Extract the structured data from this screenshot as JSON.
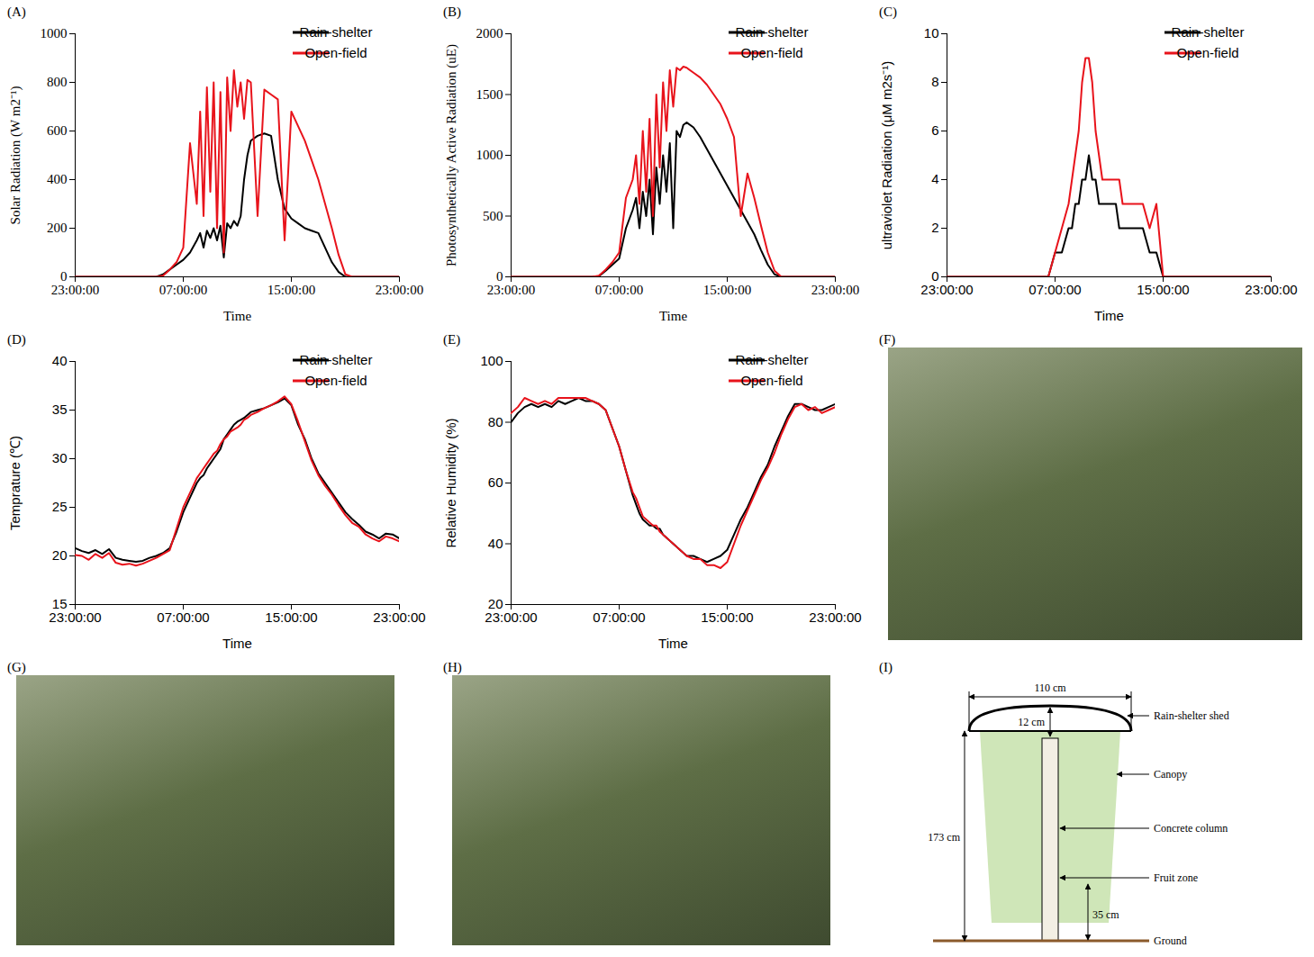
{
  "chart_data": [
    {
      "type": "line",
      "title": "(A)",
      "x_label": "Time",
      "y_label": "Solar Radiation (W m2⁻¹)",
      "x": [
        0,
        0.5,
        1,
        1.5,
        2,
        2.5,
        3,
        3.5,
        4,
        4.5,
        5,
        5.5,
        6,
        6.5,
        7,
        7.5,
        8,
        8.5,
        9,
        9.25,
        9.5,
        9.75,
        10,
        10.25,
        10.5,
        10.75,
        11,
        11.25,
        11.5,
        11.75,
        12,
        12.25,
        12.5,
        12.75,
        13,
        13.5,
        14,
        14.5,
        15,
        15.5,
        16,
        16.5,
        17,
        17.5,
        18,
        18.5,
        19,
        19.5,
        20,
        20.5,
        21,
        21.5,
        22,
        22.5,
        23,
        23.5,
        24
      ],
      "xlim": [
        0,
        24
      ],
      "xticks": [
        {
          "value": 0,
          "label": "23:00:00"
        },
        {
          "value": 8,
          "label": "07:00:00"
        },
        {
          "value": 16,
          "label": "15:00:00"
        },
        {
          "value": 24,
          "label": "23:00:00"
        }
      ],
      "ylim": [
        0,
        1000
      ],
      "yticks": [
        0,
        200,
        400,
        600,
        800,
        1000
      ],
      "grid": false,
      "legend": "top-right",
      "series": [
        {
          "name": "Rain-shelter",
          "color": "#000000",
          "values": [
            0,
            0,
            0,
            0,
            0,
            0,
            0,
            0,
            0,
            0,
            0,
            0,
            0,
            10,
            30,
            50,
            70,
            100,
            150,
            180,
            120,
            190,
            160,
            200,
            150,
            210,
            80,
            220,
            200,
            230,
            210,
            250,
            400,
            500,
            560,
            580,
            590,
            580,
            400,
            280,
            240,
            220,
            200,
            190,
            180,
            120,
            60,
            20,
            0,
            0,
            0,
            0,
            0,
            0,
            0,
            0,
            0
          ]
        },
        {
          "name": "Open-field",
          "color": "#e8131b",
          "values": [
            0,
            0,
            0,
            0,
            0,
            0,
            0,
            0,
            0,
            0,
            0,
            0,
            0,
            5,
            30,
            60,
            120,
            550,
            300,
            680,
            250,
            780,
            350,
            800,
            200,
            760,
            100,
            820,
            600,
            850,
            700,
            800,
            650,
            810,
            800,
            250,
            770,
            750,
            730,
            150,
            680,
            620,
            560,
            480,
            400,
            300,
            200,
            90,
            10,
            0,
            0,
            0,
            0,
            0,
            0,
            0,
            0
          ]
        }
      ]
    },
    {
      "type": "line",
      "title": "(B)",
      "x_label": "Time",
      "y_label": "Photosynthetically Active Radiation (uE)",
      "x": [
        0,
        0.5,
        1,
        1.5,
        2,
        2.5,
        3,
        3.5,
        4,
        4.5,
        5,
        5.5,
        6,
        6.5,
        7,
        7.5,
        8,
        8.5,
        9,
        9.25,
        9.5,
        9.75,
        10,
        10.25,
        10.5,
        10.75,
        11,
        11.25,
        11.5,
        11.75,
        12,
        12.25,
        12.5,
        12.75,
        13,
        13.5,
        14,
        14.5,
        15,
        15.5,
        16,
        16.5,
        17,
        17.5,
        18,
        18.5,
        19,
        19.5,
        20,
        20.5,
        21,
        21.5,
        22,
        22.5,
        23,
        23.5,
        24
      ],
      "xlim": [
        0,
        24
      ],
      "xticks": [
        {
          "value": 0,
          "label": "23:00:00"
        },
        {
          "value": 8,
          "label": "07:00:00"
        },
        {
          "value": 16,
          "label": "15:00:00"
        },
        {
          "value": 24,
          "label": "23:00:00"
        }
      ],
      "ylim": [
        0,
        2000
      ],
      "yticks": [
        0,
        500,
        1000,
        1500,
        2000
      ],
      "grid": false,
      "legend": "top-right",
      "series": [
        {
          "name": "Rain-shelter",
          "color": "#000000",
          "values": [
            0,
            0,
            0,
            0,
            0,
            0,
            0,
            0,
            0,
            0,
            0,
            0,
            0,
            5,
            50,
            100,
            150,
            400,
            550,
            650,
            400,
            700,
            500,
            800,
            350,
            900,
            600,
            1000,
            700,
            1100,
            400,
            1200,
            1150,
            1250,
            1270,
            1230,
            1150,
            1050,
            950,
            850,
            750,
            650,
            550,
            450,
            350,
            220,
            100,
            20,
            0,
            0,
            0,
            0,
            0,
            0,
            0,
            0,
            0
          ]
        },
        {
          "name": "Open-field",
          "color": "#e8131b",
          "values": [
            0,
            0,
            0,
            0,
            0,
            0,
            0,
            0,
            0,
            0,
            0,
            0,
            0,
            10,
            60,
            120,
            200,
            650,
            800,
            1000,
            600,
            1200,
            700,
            1300,
            500,
            1500,
            900,
            1600,
            1200,
            1700,
            1400,
            1720,
            1700,
            1730,
            1720,
            1680,
            1640,
            1580,
            1500,
            1420,
            1300,
            1150,
            500,
            850,
            650,
            420,
            200,
            50,
            0,
            0,
            0,
            0,
            0,
            0,
            0,
            0,
            0
          ]
        }
      ]
    },
    {
      "type": "line",
      "title": "(C)",
      "x_label": "Time",
      "y_label": "ultraviolet Radiation (μM m2s⁻¹)",
      "x": [
        0,
        0.5,
        1,
        1.5,
        2,
        2.5,
        3,
        3.5,
        4,
        4.5,
        5,
        5.5,
        6,
        6.5,
        7,
        7.5,
        8,
        8.5,
        9,
        9.25,
        9.5,
        9.75,
        10,
        10.25,
        10.5,
        10.75,
        11,
        11.25,
        11.5,
        11.75,
        12,
        12.25,
        12.5,
        12.75,
        13,
        13.5,
        14,
        14.5,
        15,
        15.5,
        16,
        16.5,
        17,
        17.5,
        18,
        18.5,
        19,
        19.5,
        20,
        20.5,
        21,
        21.5,
        22,
        22.5,
        23,
        23.5,
        24
      ],
      "xlim": [
        0,
        24
      ],
      "xticks": [
        {
          "value": 0,
          "label": "23:00:00"
        },
        {
          "value": 8,
          "label": "07:00:00"
        },
        {
          "value": 16,
          "label": "15:00:00"
        },
        {
          "value": 24,
          "label": "23:00:00"
        }
      ],
      "ylim": [
        0,
        10
      ],
      "yticks": [
        0,
        2,
        4,
        6,
        8,
        10
      ],
      "grid": false,
      "legend": "top-right",
      "series": [
        {
          "name": "Rain-shelter",
          "color": "#000000",
          "values": [
            0,
            0,
            0,
            0,
            0,
            0,
            0,
            0,
            0,
            0,
            0,
            0,
            0,
            0,
            0,
            0,
            1,
            1,
            2,
            2,
            3,
            3,
            4,
            4,
            5,
            4,
            4,
            3,
            3,
            3,
            3,
            3,
            3,
            2,
            2,
            2,
            2,
            2,
            1,
            1,
            0,
            0,
            0,
            0,
            0,
            0,
            0,
            0,
            0,
            0,
            0,
            0,
            0,
            0,
            0,
            0,
            0
          ]
        },
        {
          "name": "Open-field",
          "color": "#e8131b",
          "values": [
            0,
            0,
            0,
            0,
            0,
            0,
            0,
            0,
            0,
            0,
            0,
            0,
            0,
            0,
            0,
            0,
            1,
            2,
            3,
            4,
            5,
            6,
            8,
            9,
            9,
            8,
            6,
            5,
            4,
            4,
            4,
            4,
            4,
            4,
            3,
            3,
            3,
            3,
            2,
            3,
            0,
            0,
            0,
            0,
            0,
            0,
            0,
            0,
            0,
            0,
            0,
            0,
            0,
            0,
            0,
            0,
            0
          ]
        }
      ]
    },
    {
      "type": "line",
      "title": "(D)",
      "x_label": "Time",
      "y_label": "Temprature (℃)",
      "x": [
        0,
        0.5,
        1,
        1.5,
        2,
        2.5,
        3,
        3.5,
        4,
        4.5,
        5,
        5.5,
        6,
        6.5,
        7,
        7.5,
        8,
        8.5,
        9,
        9.25,
        9.5,
        9.75,
        10,
        10.25,
        10.5,
        10.75,
        11,
        11.25,
        11.5,
        11.75,
        12,
        12.25,
        12.5,
        12.75,
        13,
        13.5,
        14,
        14.5,
        15,
        15.5,
        16,
        16.5,
        17,
        17.5,
        18,
        18.5,
        19,
        19.5,
        20,
        20.5,
        21,
        21.5,
        22,
        22.5,
        23,
        23.5,
        24
      ],
      "xlim": [
        0,
        24
      ],
      "xticks": [
        {
          "value": 0,
          "label": "23:00:00"
        },
        {
          "value": 8,
          "label": "07:00:00"
        },
        {
          "value": 16,
          "label": "15:00:00"
        },
        {
          "value": 24,
          "label": "23:00:00"
        }
      ],
      "ylim": [
        15,
        40
      ],
      "yticks": [
        15,
        20,
        25,
        30,
        35,
        40
      ],
      "grid": false,
      "legend": "top-right",
      "series": [
        {
          "name": "Rain-shelter",
          "color": "#000000",
          "values": [
            20.8,
            20.5,
            20.3,
            20.6,
            20.2,
            20.7,
            19.8,
            19.6,
            19.5,
            19.4,
            19.5,
            19.8,
            20,
            20.3,
            20.8,
            22.5,
            24.5,
            26,
            27.5,
            28,
            28.3,
            29,
            29.5,
            30,
            30.5,
            31,
            32,
            32.5,
            33,
            33.5,
            33.8,
            34,
            34.2,
            34.5,
            34.8,
            35,
            35.2,
            35.5,
            35.8,
            36.2,
            35.5,
            33.5,
            32,
            30,
            28.5,
            27.5,
            26.5,
            25.5,
            24.5,
            23.8,
            23.2,
            22.5,
            22.2,
            21.8,
            22.3,
            22.2,
            21.8
          ]
        },
        {
          "name": "Open-field",
          "color": "#e8131b",
          "values": [
            20.1,
            20,
            19.6,
            20.2,
            19.8,
            20.3,
            19.3,
            19.1,
            19.2,
            19,
            19.2,
            19.5,
            19.8,
            20.2,
            20.6,
            22.8,
            25,
            26.5,
            28,
            28.5,
            29,
            29.5,
            30,
            30.5,
            30.8,
            31.5,
            32,
            32.3,
            32.8,
            33,
            33.2,
            33.5,
            34,
            34.2,
            34.5,
            34.8,
            35.2,
            35.5,
            35.9,
            36.4,
            35.6,
            33.8,
            31.8,
            29.8,
            28.3,
            27.2,
            26.3,
            25.2,
            24.2,
            23.4,
            23,
            22.2,
            21.8,
            21.5,
            22,
            21.8,
            21.5
          ]
        }
      ]
    },
    {
      "type": "line",
      "title": "(E)",
      "x_label": "Time",
      "y_label": "Relative Humidity (%)",
      "x": [
        0,
        0.5,
        1,
        1.5,
        2,
        2.5,
        3,
        3.5,
        4,
        4.5,
        5,
        5.5,
        6,
        6.5,
        7,
        7.5,
        8,
        8.5,
        9,
        9.25,
        9.5,
        9.75,
        10,
        10.25,
        10.5,
        10.75,
        11,
        11.25,
        11.5,
        11.75,
        12,
        12.25,
        12.5,
        12.75,
        13,
        13.5,
        14,
        14.5,
        15,
        15.5,
        16,
        16.5,
        17,
        17.5,
        18,
        18.5,
        19,
        19.5,
        20,
        20.5,
        21,
        21.5,
        22,
        22.5,
        23,
        23.5,
        24
      ],
      "xlim": [
        0,
        24
      ],
      "xticks": [
        {
          "value": 0,
          "label": "23:00:00"
        },
        {
          "value": 8,
          "label": "07:00:00"
        },
        {
          "value": 16,
          "label": "15:00:00"
        },
        {
          "value": 24,
          "label": "23:00:00"
        }
      ],
      "ylim": [
        20,
        100
      ],
      "yticks": [
        20,
        40,
        60,
        80,
        100
      ],
      "grid": false,
      "legend": "top-right",
      "series": [
        {
          "name": "Rain-shelter",
          "color": "#000000",
          "values": [
            80,
            83,
            85,
            86,
            85,
            86,
            85,
            87,
            86,
            87,
            88,
            87,
            87,
            86,
            84,
            78,
            72,
            64,
            56,
            53,
            50,
            48,
            47,
            46,
            46,
            45,
            45,
            43,
            42,
            41,
            40,
            39,
            38,
            37,
            36,
            36,
            35,
            34,
            35,
            36,
            38,
            43,
            48,
            52,
            57,
            62,
            66,
            72,
            77,
            82,
            86,
            86,
            85,
            84,
            84,
            85,
            86
          ]
        },
        {
          "name": "Open-field",
          "color": "#e8131b",
          "values": [
            83,
            85,
            88,
            87,
            86,
            87,
            86,
            88,
            88,
            88,
            88,
            88,
            87,
            86,
            84,
            78,
            72,
            64,
            57,
            55,
            52,
            49,
            48,
            47,
            46,
            46,
            44,
            43,
            42,
            41,
            40,
            39,
            38,
            37,
            36,
            35,
            35,
            33,
            33,
            32,
            34,
            40,
            46,
            51,
            56,
            61,
            65,
            70,
            76,
            81,
            85,
            86,
            84,
            85,
            83,
            84,
            85
          ]
        }
      ]
    }
  ],
  "photos": [
    {
      "title": "(F)"
    },
    {
      "title": "(G)"
    },
    {
      "title": "(H)"
    }
  ],
  "diagram": {
    "title": "(I)",
    "width": "110 cm",
    "gap": "12 cm",
    "height": "173 cm",
    "fruit_height": "35 cm",
    "shed": "Rain-shelter shed",
    "canopy": "Canopy",
    "column": "Concrete column",
    "fruit_zone": "Fruit zone",
    "ground": "Ground"
  }
}
